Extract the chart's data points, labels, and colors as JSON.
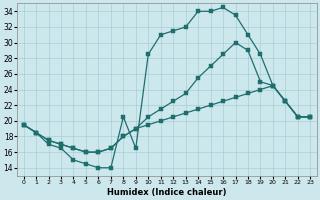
{
  "background_color": "#cde8ec",
  "grid_color": "#aacdd4",
  "line_color": "#1f6e6e",
  "xlim": [
    -0.5,
    23.5
  ],
  "ylim": [
    13,
    35
  ],
  "yticks": [
    14,
    16,
    18,
    20,
    22,
    24,
    26,
    28,
    30,
    32,
    34
  ],
  "xticks": [
    0,
    1,
    2,
    3,
    4,
    5,
    6,
    7,
    8,
    9,
    10,
    11,
    12,
    13,
    14,
    15,
    16,
    17,
    18,
    19,
    20,
    21,
    22,
    23
  ],
  "xlabel": "Humidex (Indice chaleur)",
  "curve1_x": [
    0,
    1,
    2,
    3,
    4,
    5,
    6,
    7,
    8,
    9,
    10,
    11,
    12,
    13,
    14,
    15,
    16,
    17,
    18,
    19,
    20,
    21,
    22,
    23
  ],
  "curve1_y": [
    19.5,
    18.5,
    17.0,
    16.5,
    15.0,
    14.5,
    14.0,
    14.0,
    20.5,
    16.5,
    28.5,
    31.0,
    31.5,
    32.0,
    34.0,
    34.0,
    34.5,
    33.5,
    31.0,
    28.5,
    24.5,
    22.5,
    20.5,
    20.5
  ],
  "curve2_x": [
    0,
    1,
    2,
    3,
    4,
    5,
    6,
    7,
    8,
    9,
    10,
    11,
    12,
    13,
    14,
    15,
    16,
    17,
    18,
    19,
    20,
    21,
    22,
    23
  ],
  "curve2_y": [
    19.5,
    18.5,
    17.5,
    17.0,
    16.5,
    16.0,
    16.0,
    16.5,
    18.0,
    19.0,
    20.5,
    21.5,
    22.5,
    23.5,
    25.5,
    27.0,
    28.5,
    30.0,
    29.0,
    25.0,
    24.5,
    22.5,
    20.5,
    20.5
  ],
  "curve3_x": [
    0,
    1,
    2,
    3,
    4,
    5,
    6,
    7,
    8,
    9,
    10,
    11,
    12,
    13,
    14,
    15,
    16,
    17,
    18,
    19,
    20,
    21,
    22,
    23
  ],
  "curve3_y": [
    19.5,
    18.5,
    17.5,
    17.0,
    16.5,
    16.0,
    16.0,
    16.5,
    18.0,
    19.0,
    19.5,
    20.0,
    20.5,
    21.0,
    21.5,
    22.0,
    22.5,
    23.0,
    23.5,
    24.0,
    24.5,
    22.5,
    20.5,
    20.5
  ]
}
